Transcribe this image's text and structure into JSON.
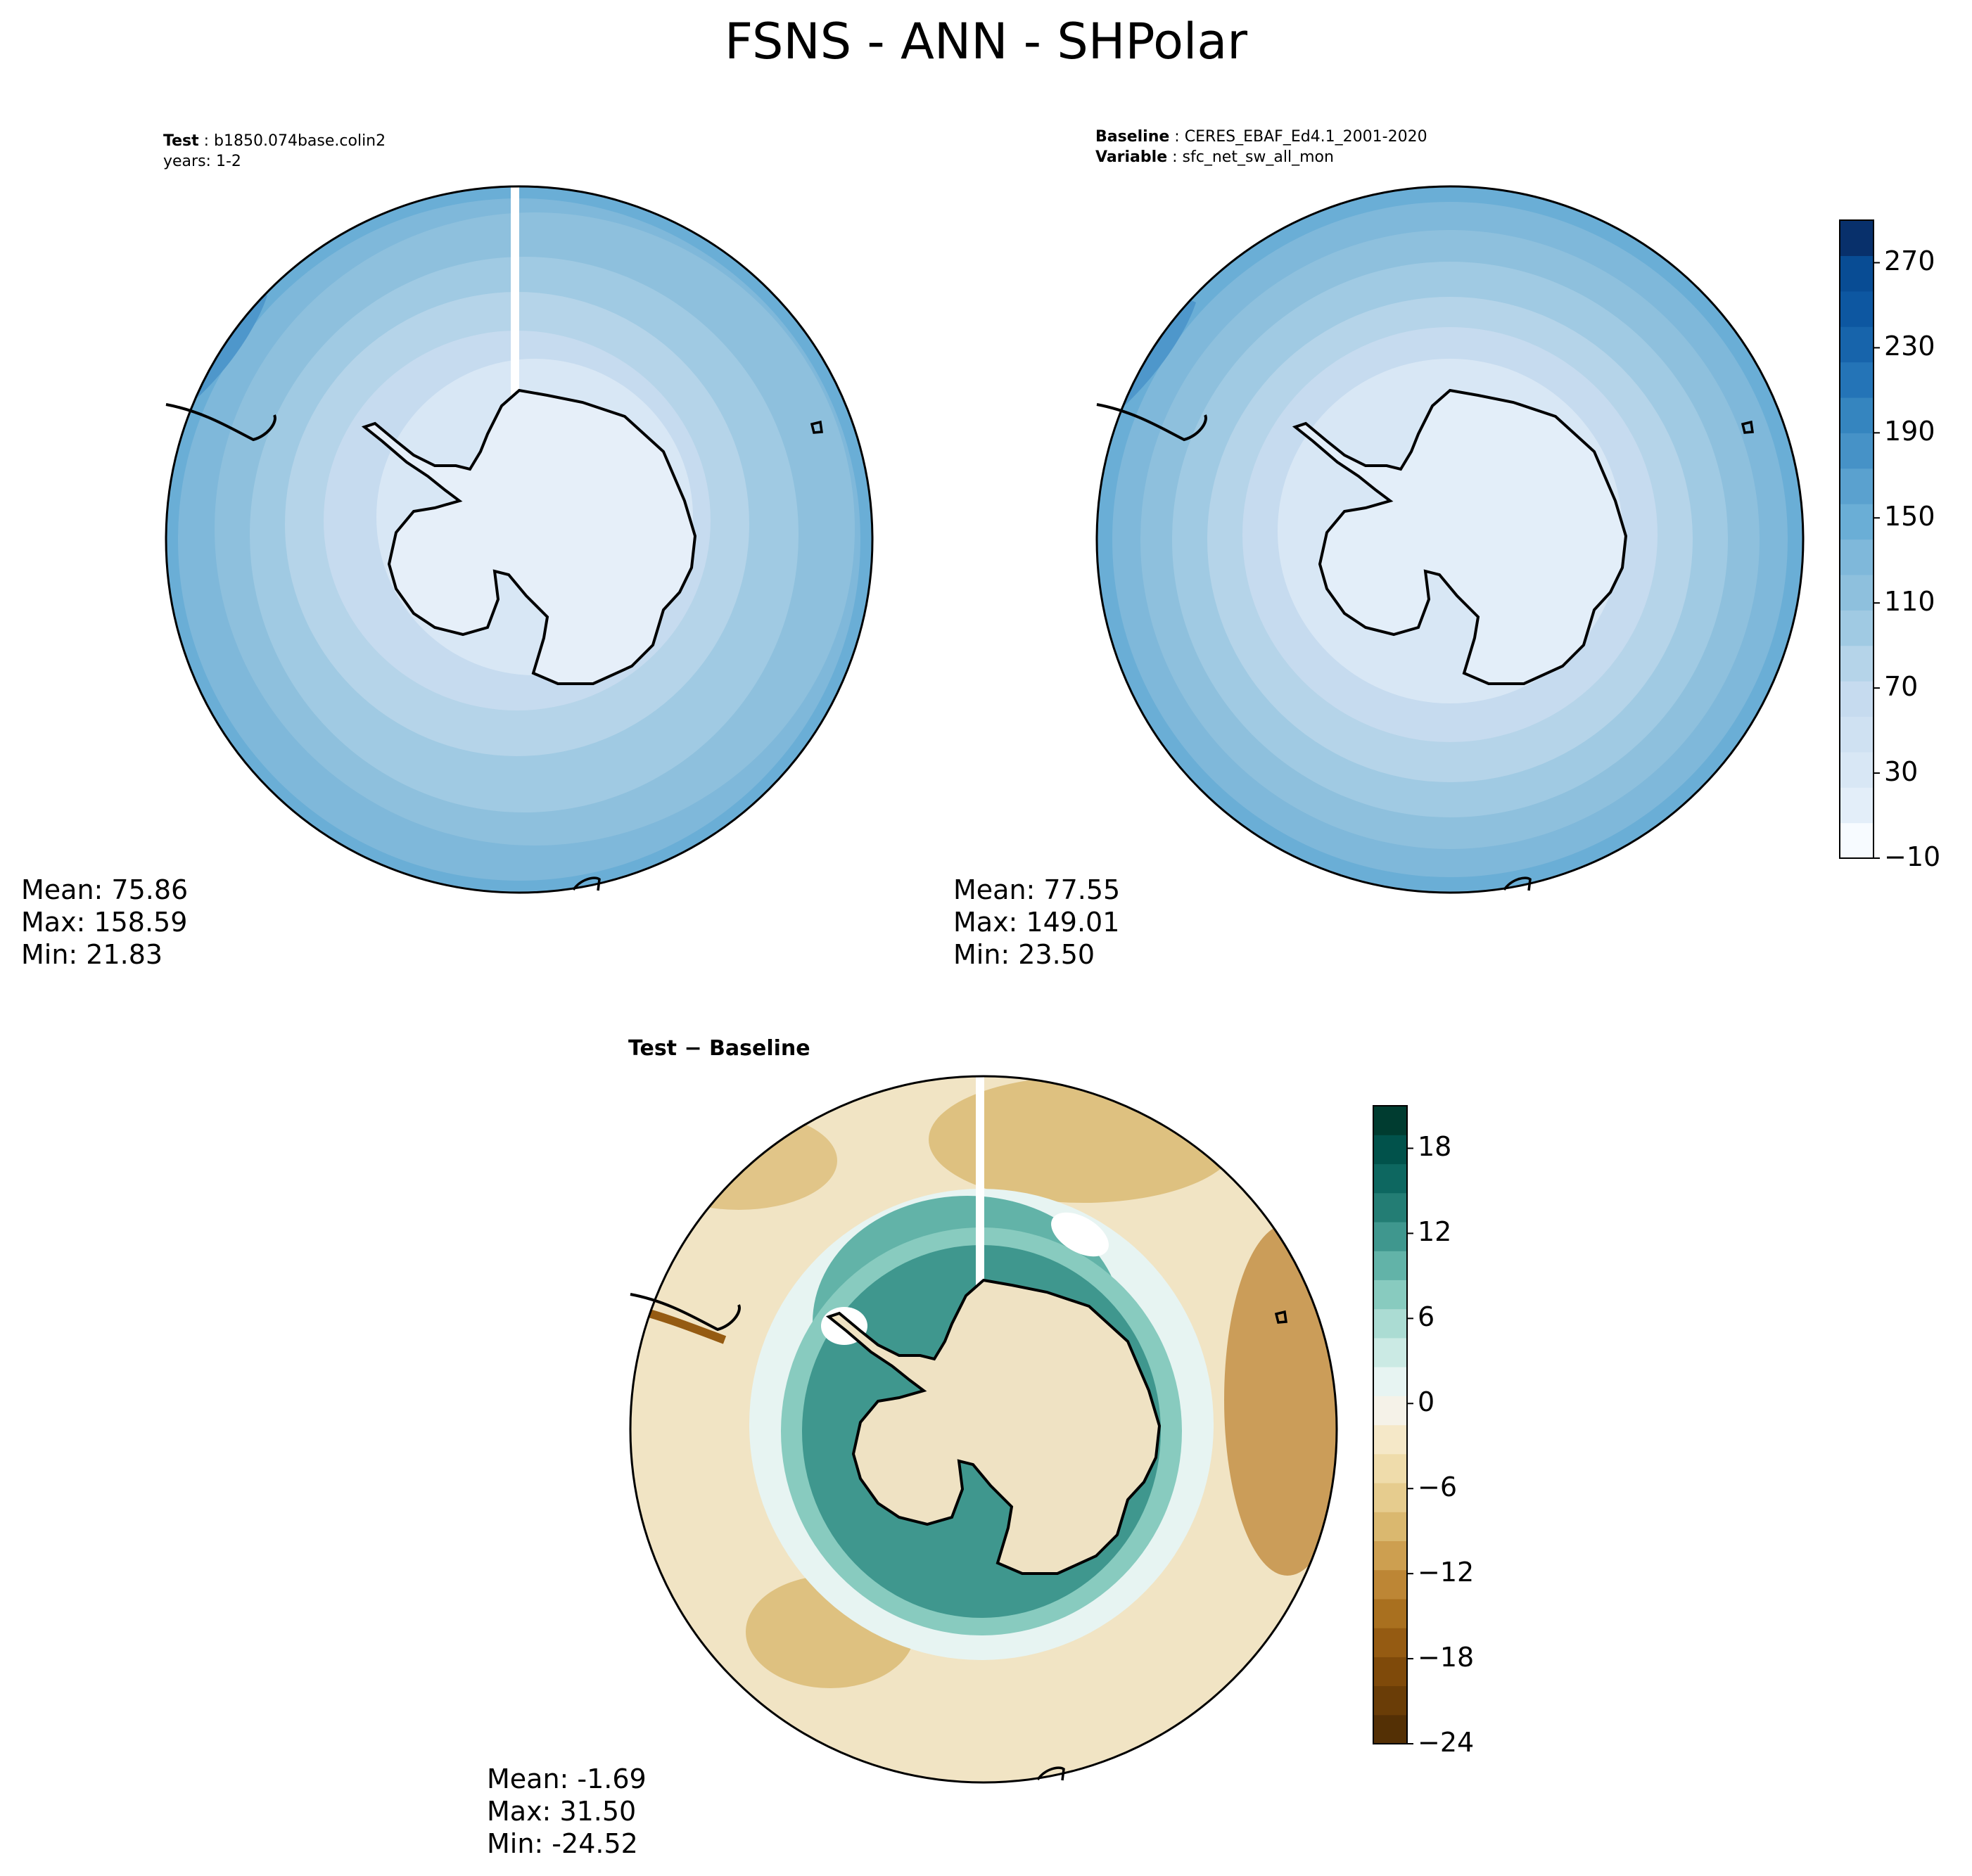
{
  "chart_data": {
    "title": "FSNS - ANN - SHPolar",
    "panels": [
      {
        "id": "test",
        "type": "heatmap",
        "projection": "south-polar-stereographic",
        "header": [
          {
            "label": "Test",
            "value": "b1850.074base.colin2"
          },
          {
            "label": "",
            "value": "years: 1-2"
          }
        ],
        "stats": {
          "mean": "Mean: 75.86",
          "max": "Max: 158.59",
          "min": "Min: 21.83"
        }
      },
      {
        "id": "baseline",
        "type": "heatmap",
        "projection": "south-polar-stereographic",
        "header": [
          {
            "label": "Baseline",
            "value": "CERES_EBAF_Ed4.1_2001-2020"
          },
          {
            "label": "Variable",
            "value": "sfc_net_sw_all_mon"
          }
        ],
        "stats": {
          "mean": "Mean: 77.55",
          "max": "Max: 149.01",
          "min": "Min: 23.50"
        }
      },
      {
        "id": "diff",
        "type": "heatmap",
        "projection": "south-polar-stereographic",
        "title": "Test − Baseline",
        "stats": {
          "mean": "Mean: -1.69",
          "max": "Max: 31.50",
          "min": "Min: -24.52"
        }
      }
    ],
    "colorbar_main": {
      "range": [
        -10,
        290
      ],
      "ticks": [
        "−10",
        "30",
        "70",
        "110",
        "150",
        "190",
        "230",
        "270"
      ],
      "colors": [
        "#f7fbff",
        "#e3eef9",
        "#d8e7f5",
        "#cfe1f2",
        "#c6dbef",
        "#b5d4e9",
        "#a0cae3",
        "#8ec0dd",
        "#7fb8da",
        "#6aaed6",
        "#5aa1cf",
        "#4692c7",
        "#3585bf",
        "#2474b7",
        "#1764ab",
        "#0d57a1",
        "#084c94",
        "#08306b"
      ]
    },
    "colorbar_diff": {
      "range": [
        -24,
        21
      ],
      "ticks": [
        "−24",
        "−18",
        "−12",
        "−6",
        "0",
        "6",
        "12",
        "18"
      ],
      "colors": [
        "#543005",
        "#6a3d07",
        "#7f4a0a",
        "#955b12",
        "#a9701f",
        "#bd8635",
        "#cd9f50",
        "#dab86f",
        "#e6cc8e",
        "#efdcab",
        "#f5e8c8",
        "#f5f2e8",
        "#e7f4f2",
        "#cbeae4",
        "#abdcd3",
        "#88cbbf",
        "#62b3a8",
        "#3f978e",
        "#237d74",
        "#0d6760",
        "#01524b",
        "#003c30"
      ]
    },
    "antarctic_land": {
      "test": "#e6eff9",
      "baseline": "#e3eef9",
      "diff": "#efe2c3"
    }
  }
}
